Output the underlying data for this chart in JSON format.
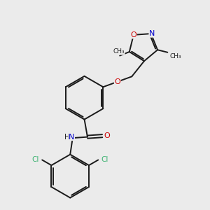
{
  "background_color": "#ebebeb",
  "bond_color": "#1a1a1a",
  "atom_colors": {
    "O": "#cc0000",
    "N": "#0000cc",
    "Cl": "#3cb371",
    "C": "#1a1a1a",
    "H": "#555555"
  },
  "fig_size": [
    3.0,
    3.0
  ],
  "dpi": 100
}
